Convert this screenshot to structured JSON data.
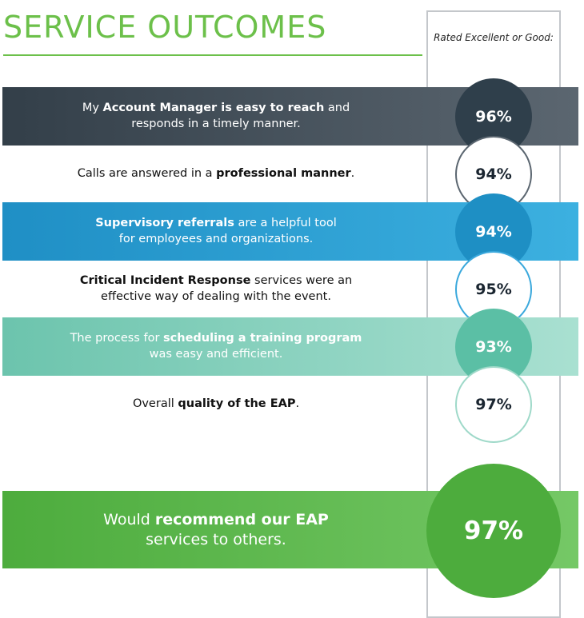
{
  "title": "SERVICE OUTCOMES",
  "column_header": "Rated Excellent or Good:",
  "rows": [
    {
      "segments": [
        [
          "My ",
          0
        ],
        [
          "Account Manager is easy to reach",
          1
        ],
        [
          " and\nresponds in a timely manner.",
          0
        ]
      ],
      "value": "96%",
      "band_color": "#3a4650",
      "circle_color": "#2f3f4b",
      "text_color": "#ffffff"
    },
    {
      "segments": [
        [
          "Calls are answered in a ",
          0
        ],
        [
          "professional manner",
          1
        ],
        [
          ".",
          0
        ]
      ],
      "value": "94%",
      "band_color": "",
      "circle_color": "#5b6670",
      "text_color": "#111111"
    },
    {
      "segments": [
        [
          "Supervisory referrals",
          1
        ],
        [
          " are a helpful tool\nfor employees and organizations.",
          0
        ]
      ],
      "value": "94%",
      "band_color": "#2a9ad0",
      "circle_color": "#1e8fc4",
      "text_color": "#ffffff"
    },
    {
      "segments": [
        [
          "Critical Incident Response",
          1
        ],
        [
          " services were an\neffective way of dealing with the event.",
          0
        ]
      ],
      "value": "95%",
      "band_color": "",
      "circle_color": "#3aa8dc",
      "text_color": "#111111"
    },
    {
      "segments": [
        [
          "The process for ",
          0
        ],
        [
          "scheduling a training program",
          1
        ],
        [
          "\nwas easy and efficient.",
          0
        ]
      ],
      "value": "93%",
      "band_color": "#7fcdb8",
      "circle_color": "#5bbfa5",
      "text_color": "#ffffff"
    },
    {
      "segments": [
        [
          "Overall ",
          0
        ],
        [
          "quality of the EAP",
          1
        ],
        [
          ".",
          0
        ]
      ],
      "value": "97%",
      "band_color": "",
      "circle_color": "#9fd9c9",
      "text_color": "#111111"
    }
  ],
  "recommend": {
    "segments": [
      [
        "Would ",
        0
      ],
      [
        "recommend our EAP",
        1
      ],
      [
        "\nservices to others.",
        0
      ]
    ],
    "value": "97%",
    "band_color": "#5fbb4c",
    "circle_color": "#4dac3d"
  }
}
